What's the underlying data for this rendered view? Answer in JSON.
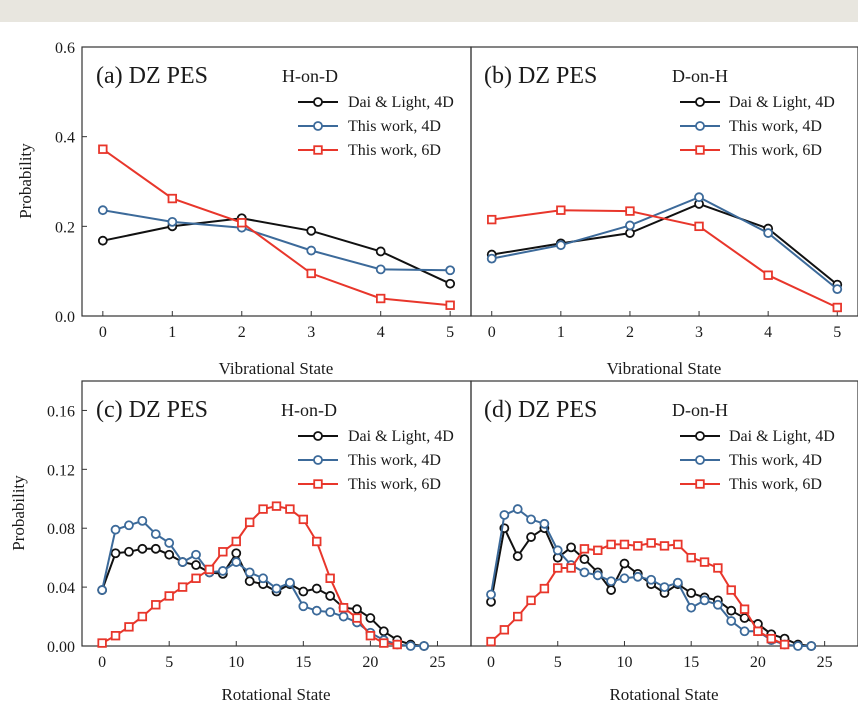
{
  "colors": {
    "dai": "#111111",
    "this4d": "#3c6a9a",
    "this6d": "#e8362b"
  },
  "chart_data": [
    {
      "type": "line",
      "label": "(a) DZ PES",
      "case": "H-on-D",
      "xlabel": "Vibrational State",
      "ylabel": "Probability",
      "xlim": [
        -0.3,
        5.3
      ],
      "ylim": [
        0,
        0.6
      ],
      "xticks": [
        0,
        1,
        2,
        3,
        4,
        5
      ],
      "yticks": [
        0.0,
        0.2,
        0.4,
        0.6
      ],
      "ytick_labels": [
        "0.0",
        "0.2",
        "0.4",
        "0.6"
      ],
      "series": [
        {
          "name": "Dai & Light, 4D",
          "marker": "circle",
          "color": "#111111",
          "x": [
            0,
            1,
            2,
            3,
            4,
            5
          ],
          "y": [
            0.168,
            0.2,
            0.218,
            0.19,
            0.144,
            0.072
          ]
        },
        {
          "name": "This work, 4D",
          "marker": "circle",
          "color": "#3c6a9a",
          "x": [
            0,
            1,
            2,
            3,
            4,
            5
          ],
          "y": [
            0.236,
            0.21,
            0.197,
            0.146,
            0.104,
            0.102
          ]
        },
        {
          "name": "This work, 6D",
          "marker": "square",
          "color": "#e8362b",
          "x": [
            0,
            1,
            2,
            3,
            4,
            5
          ],
          "y": [
            0.372,
            0.262,
            0.208,
            0.095,
            0.039,
            0.024
          ]
        }
      ]
    },
    {
      "type": "line",
      "label": "(b) DZ PES",
      "case": "D-on-H",
      "xlabel": "Vibrational State",
      "ylabel": "",
      "xlim": [
        -0.3,
        5.3
      ],
      "ylim": [
        0,
        0.6
      ],
      "xticks": [
        0,
        1,
        2,
        3,
        4,
        5
      ],
      "yticks": [],
      "ytick_labels": [],
      "series": [
        {
          "name": "Dai & Light, 4D",
          "marker": "circle",
          "color": "#111111",
          "x": [
            0,
            1,
            2,
            3,
            4,
            5
          ],
          "y": [
            0.137,
            0.162,
            0.185,
            0.25,
            0.195,
            0.07
          ]
        },
        {
          "name": "This work, 4D",
          "marker": "circle",
          "color": "#3c6a9a",
          "x": [
            0,
            1,
            2,
            3,
            4,
            5
          ],
          "y": [
            0.128,
            0.158,
            0.202,
            0.265,
            0.185,
            0.06
          ]
        },
        {
          "name": "This work, 6D",
          "marker": "square",
          "color": "#e8362b",
          "x": [
            0,
            1,
            2,
            3,
            4,
            5
          ],
          "y": [
            0.215,
            0.236,
            0.234,
            0.2,
            0.091,
            0.019
          ]
        }
      ]
    },
    {
      "type": "line",
      "label": "(c) DZ PES",
      "case": "H-on-D",
      "xlabel": "Rotational State",
      "ylabel": "Probability",
      "xlim": [
        -1.5,
        27.5
      ],
      "ylim": [
        0,
        0.18
      ],
      "xticks": [
        0,
        5,
        10,
        15,
        20,
        25
      ],
      "yticks": [
        0.0,
        0.04,
        0.08,
        0.12,
        0.16
      ],
      "ytick_labels": [
        "0.00",
        "0.04",
        "0.08",
        "0.12",
        "0.16"
      ],
      "series": [
        {
          "name": "Dai & Light, 4D",
          "marker": "circle",
          "color": "#111111",
          "x": [
            0,
            1,
            2,
            3,
            4,
            5,
            6,
            7,
            8,
            9,
            10,
            11,
            12,
            13,
            14,
            15,
            16,
            17,
            18,
            19,
            20,
            21,
            22,
            23,
            24
          ],
          "y": [
            0.038,
            0.063,
            0.064,
            0.066,
            0.066,
            0.062,
            0.057,
            0.055,
            0.05,
            0.049,
            0.063,
            0.044,
            0.042,
            0.037,
            0.042,
            0.037,
            0.039,
            0.034,
            0.026,
            0.025,
            0.019,
            0.01,
            0.004,
            0.001,
            0.0
          ]
        },
        {
          "name": "This work, 4D",
          "marker": "circle",
          "color": "#3c6a9a",
          "x": [
            0,
            1,
            2,
            3,
            4,
            5,
            6,
            7,
            8,
            9,
            10,
            11,
            12,
            13,
            14,
            15,
            16,
            17,
            18,
            19,
            20,
            21,
            22,
            23,
            24
          ],
          "y": [
            0.038,
            0.079,
            0.082,
            0.085,
            0.076,
            0.07,
            0.057,
            0.062,
            0.05,
            0.051,
            0.057,
            0.05,
            0.046,
            0.039,
            0.043,
            0.027,
            0.024,
            0.023,
            0.02,
            0.016,
            0.009,
            0.004,
            0.001,
            0.0,
            0.0
          ]
        },
        {
          "name": "This work, 6D",
          "marker": "square",
          "color": "#e8362b",
          "x": [
            0,
            1,
            2,
            3,
            4,
            5,
            6,
            7,
            8,
            9,
            10,
            11,
            12,
            13,
            14,
            15,
            16,
            17,
            18,
            19,
            20,
            21,
            22
          ],
          "y": [
            0.002,
            0.007,
            0.013,
            0.02,
            0.028,
            0.034,
            0.04,
            0.046,
            0.052,
            0.064,
            0.071,
            0.084,
            0.093,
            0.095,
            0.093,
            0.086,
            0.071,
            0.046,
            0.026,
            0.019,
            0.007,
            0.002,
            0.001
          ]
        }
      ]
    },
    {
      "type": "line",
      "label": "(d) DZ PES",
      "case": "D-on-H",
      "xlabel": "Rotational State",
      "ylabel": "",
      "xlim": [
        -1.5,
        27.5
      ],
      "ylim": [
        0,
        0.18
      ],
      "xticks": [
        0,
        5,
        10,
        15,
        20,
        25
      ],
      "yticks": [],
      "ytick_labels": [],
      "series": [
        {
          "name": "Dai & Light, 4D",
          "marker": "circle",
          "color": "#111111",
          "x": [
            0,
            1,
            2,
            3,
            4,
            5,
            6,
            7,
            8,
            9,
            10,
            11,
            12,
            13,
            14,
            15,
            16,
            17,
            18,
            19,
            20,
            21,
            22,
            23,
            24
          ],
          "y": [
            0.03,
            0.08,
            0.061,
            0.074,
            0.08,
            0.06,
            0.067,
            0.059,
            0.05,
            0.038,
            0.056,
            0.049,
            0.042,
            0.036,
            0.042,
            0.036,
            0.033,
            0.031,
            0.024,
            0.019,
            0.015,
            0.008,
            0.005,
            0.001,
            0.0
          ]
        },
        {
          "name": "This work, 4D",
          "marker": "circle",
          "color": "#3c6a9a",
          "x": [
            0,
            1,
            2,
            3,
            4,
            5,
            6,
            7,
            8,
            9,
            10,
            11,
            12,
            13,
            14,
            15,
            16,
            17,
            18,
            19,
            20,
            21,
            22,
            23,
            24
          ],
          "y": [
            0.035,
            0.089,
            0.093,
            0.086,
            0.083,
            0.065,
            0.055,
            0.05,
            0.048,
            0.044,
            0.046,
            0.047,
            0.045,
            0.04,
            0.043,
            0.026,
            0.031,
            0.028,
            0.017,
            0.01,
            0.01,
            0.004,
            0.001,
            0.0,
            0.0
          ]
        },
        {
          "name": "This work, 6D",
          "marker": "square",
          "color": "#e8362b",
          "x": [
            0,
            1,
            2,
            3,
            4,
            5,
            6,
            7,
            8,
            9,
            10,
            11,
            12,
            13,
            14,
            15,
            16,
            17,
            18,
            19,
            20,
            21,
            22
          ],
          "y": [
            0.003,
            0.011,
            0.02,
            0.031,
            0.039,
            0.053,
            0.053,
            0.066,
            0.065,
            0.069,
            0.069,
            0.068,
            0.07,
            0.068,
            0.069,
            0.06,
            0.057,
            0.053,
            0.038,
            0.025,
            0.01,
            0.005,
            0.001
          ]
        }
      ]
    }
  ]
}
